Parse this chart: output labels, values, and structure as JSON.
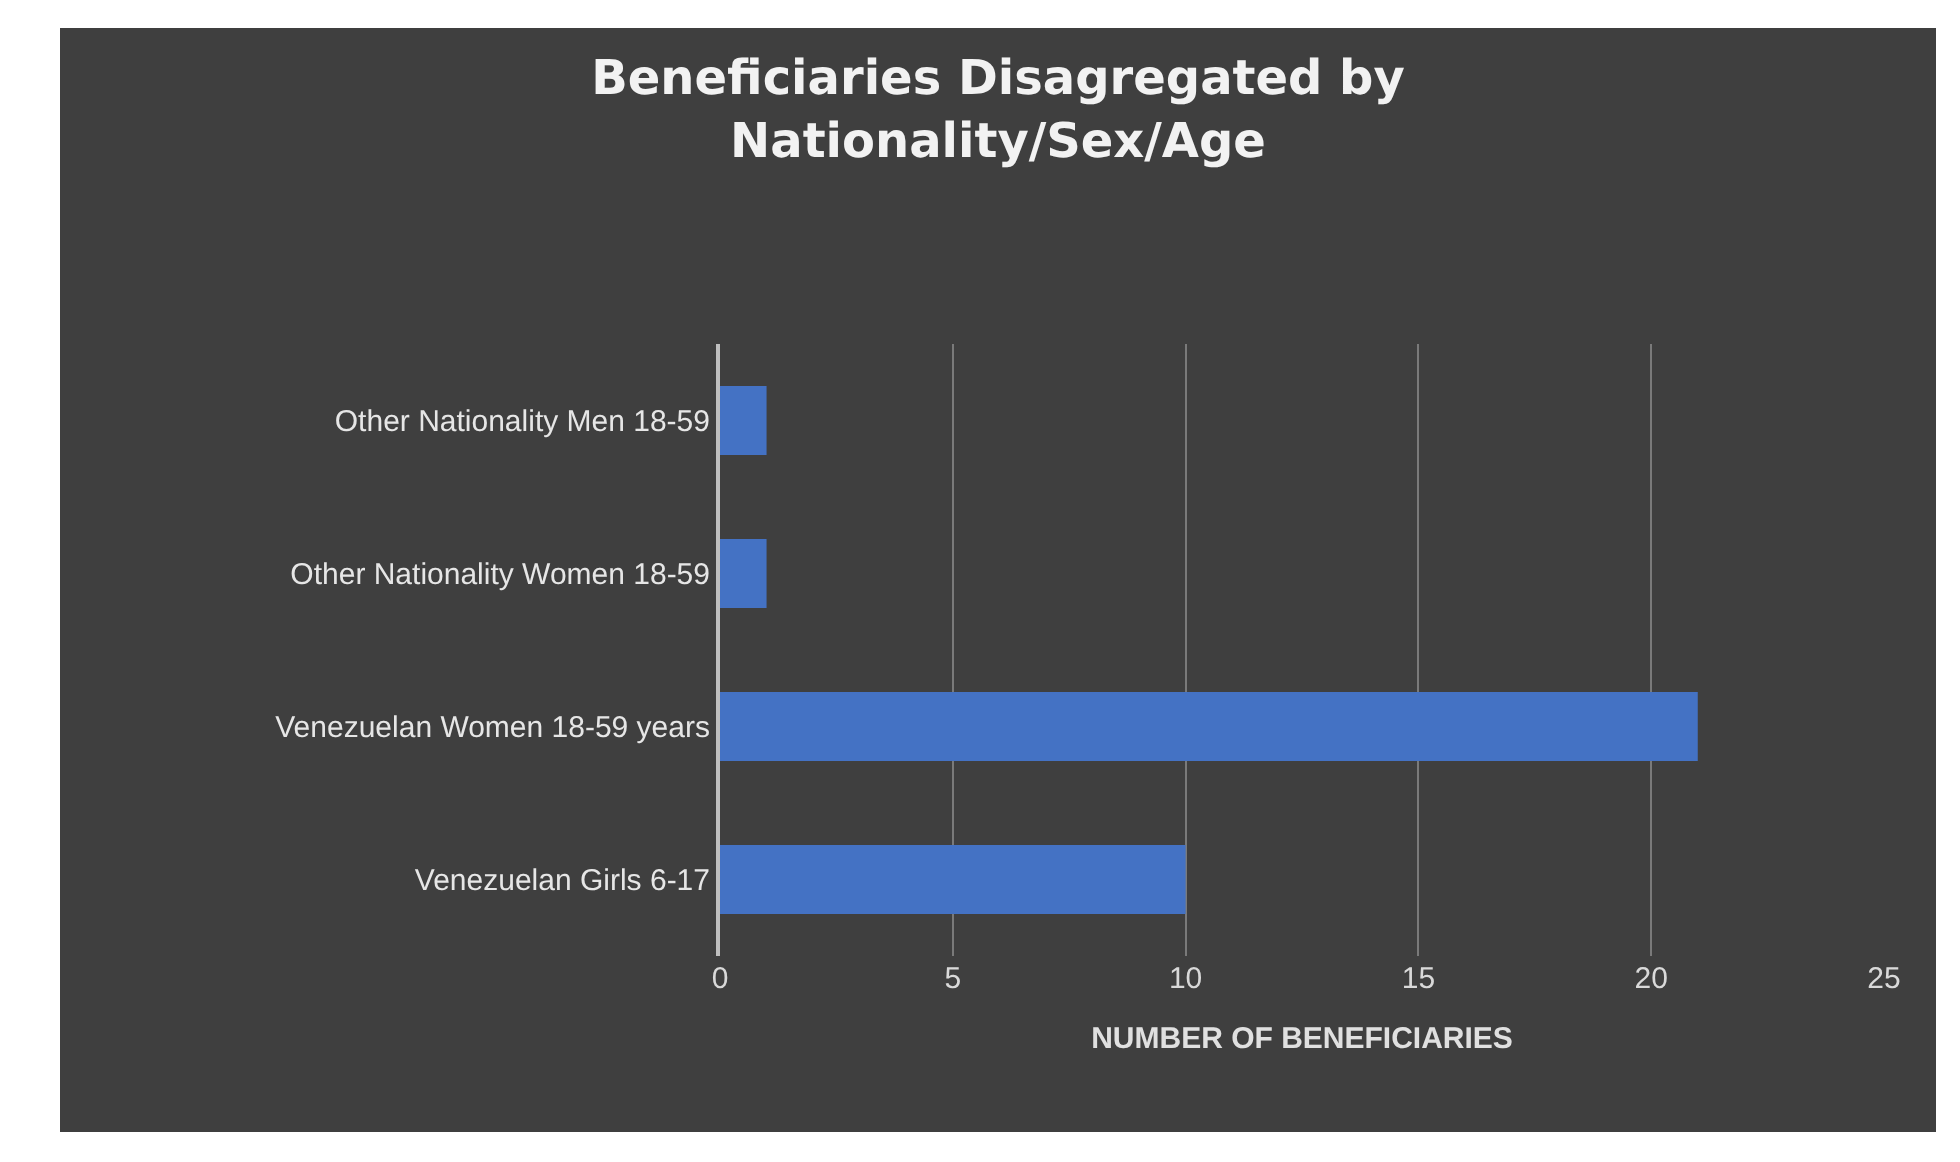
{
  "chart_data": {
    "type": "bar",
    "orientation": "horizontal",
    "title": "Beneficiaries Disagregated by Nationality/Sex/Age",
    "xlabel": "NUMBER OF BENEFICIARIES",
    "categories": [
      "Other Nationality Men 18-59",
      "Other Nationality Women 18-59",
      "Venezuelan Women 18-59 years",
      "Venezuelan Girls 6-17"
    ],
    "values": [
      1,
      1,
      21,
      10
    ],
    "color": "#4472c4",
    "xlim": [
      0,
      25
    ],
    "xticks": [
      0,
      5,
      10,
      15,
      20,
      25
    ],
    "grid": "x"
  }
}
